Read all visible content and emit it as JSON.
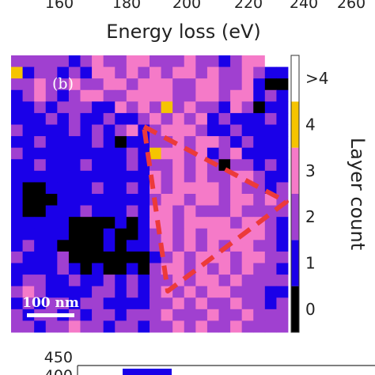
{
  "top_axis": {
    "xlabel": "Energy loss (eV)",
    "ticks": [
      "160",
      "180",
      "200",
      "220",
      "240",
      "260"
    ]
  },
  "panel_label": "(b)",
  "scale_bar_label": "100 nm",
  "bottom_panel": {
    "ticks": [
      "450",
      "400"
    ],
    "bar_color": "#1a00e8"
  },
  "chart_data": {
    "type": "heatmap",
    "ylabel": "Layer count",
    "grid": false,
    "rows": 24,
    "cols": 24,
    "legend_placement": "right colorbar",
    "colorbar": [
      {
        "label": "0",
        "value": 0,
        "color": "#000000"
      },
      {
        "label": "1",
        "value": 1,
        "color": "#1a00e8"
      },
      {
        "label": "2",
        "value": 2,
        "color": "#a040d0"
      },
      {
        "label": "3",
        "value": 3,
        "color": "#f57ac8"
      },
      {
        "label": "4",
        "value": 4,
        "color": "#f5c400"
      },
      {
        "label": ">4",
        "value": 5,
        "color": "#ffffff"
      }
    ],
    "values": [
      [
        2,
        2,
        2,
        2,
        2,
        1,
        2,
        3,
        2,
        2,
        3,
        3,
        2,
        2,
        2,
        3,
        2,
        2,
        1,
        2,
        3,
        3,
        5,
        5
      ],
      [
        4,
        1,
        2,
        2,
        1,
        2,
        1,
        3,
        3,
        2,
        3,
        2,
        3,
        2,
        3,
        3,
        2,
        3,
        2,
        2,
        3,
        2,
        1,
        1
      ],
      [
        2,
        2,
        3,
        2,
        2,
        3,
        2,
        2,
        3,
        3,
        2,
        3,
        3,
        3,
        2,
        2,
        3,
        3,
        2,
        2,
        3,
        1,
        0,
        0
      ],
      [
        1,
        2,
        3,
        2,
        1,
        2,
        3,
        3,
        2,
        2,
        3,
        3,
        3,
        3,
        2,
        2,
        3,
        3,
        2,
        3,
        3,
        1,
        2,
        1
      ],
      [
        1,
        1,
        2,
        1,
        2,
        2,
        2,
        1,
        1,
        3,
        2,
        3,
        2,
        4,
        2,
        3,
        2,
        2,
        1,
        3,
        2,
        0,
        1,
        1
      ],
      [
        1,
        1,
        1,
        2,
        1,
        2,
        1,
        1,
        2,
        1,
        1,
        2,
        3,
        2,
        3,
        2,
        3,
        1,
        2,
        1,
        1,
        1,
        2,
        1
      ],
      [
        2,
        1,
        1,
        1,
        1,
        2,
        1,
        2,
        1,
        2,
        3,
        1,
        2,
        3,
        3,
        3,
        2,
        1,
        1,
        2,
        1,
        1,
        1,
        1
      ],
      [
        1,
        1,
        2,
        1,
        1,
        1,
        1,
        2,
        1,
        0,
        1,
        1,
        2,
        2,
        3,
        2,
        3,
        3,
        2,
        1,
        2,
        1,
        1,
        1
      ],
      [
        2,
        1,
        1,
        1,
        1,
        1,
        1,
        1,
        1,
        1,
        2,
        1,
        4,
        3,
        3,
        2,
        3,
        1,
        2,
        3,
        1,
        1,
        1,
        1
      ],
      [
        1,
        1,
        2,
        1,
        1,
        1,
        2,
        1,
        1,
        1,
        2,
        1,
        2,
        2,
        3,
        2,
        3,
        2,
        0,
        2,
        2,
        1,
        2,
        1
      ],
      [
        1,
        1,
        1,
        1,
        1,
        1,
        1,
        1,
        1,
        1,
        1,
        1,
        3,
        2,
        3,
        2,
        3,
        2,
        2,
        3,
        3,
        2,
        1,
        1
      ],
      [
        1,
        0,
        0,
        1,
        1,
        1,
        1,
        2,
        1,
        1,
        2,
        1,
        3,
        2,
        3,
        3,
        3,
        3,
        2,
        3,
        2,
        2,
        1,
        2
      ],
      [
        1,
        0,
        0,
        0,
        1,
        1,
        1,
        1,
        1,
        1,
        1,
        1,
        2,
        3,
        3,
        2,
        3,
        3,
        2,
        3,
        3,
        2,
        3,
        2
      ],
      [
        1,
        0,
        0,
        1,
        1,
        1,
        2,
        1,
        1,
        1,
        2,
        1,
        3,
        3,
        2,
        3,
        2,
        2,
        2,
        3,
        2,
        2,
        2,
        2
      ],
      [
        1,
        1,
        1,
        1,
        1,
        0,
        0,
        0,
        0,
        1,
        0,
        1,
        3,
        3,
        2,
        3,
        3,
        3,
        3,
        2,
        3,
        3,
        2,
        1
      ],
      [
        1,
        1,
        1,
        1,
        1,
        0,
        0,
        0,
        1,
        0,
        0,
        1,
        2,
        3,
        2,
        3,
        2,
        3,
        3,
        3,
        3,
        3,
        2,
        1
      ],
      [
        1,
        2,
        1,
        1,
        0,
        0,
        0,
        0,
        1,
        0,
        1,
        1,
        2,
        3,
        2,
        3,
        2,
        3,
        2,
        3,
        3,
        2,
        2,
        1
      ],
      [
        2,
        1,
        1,
        1,
        2,
        0,
        0,
        0,
        0,
        0,
        0,
        0,
        1,
        2,
        3,
        2,
        3,
        3,
        3,
        2,
        3,
        3,
        2,
        2
      ],
      [
        1,
        1,
        1,
        1,
        2,
        1,
        0,
        1,
        0,
        0,
        1,
        0,
        2,
        3,
        3,
        2,
        3,
        2,
        3,
        2,
        3,
        2,
        2,
        1
      ],
      [
        1,
        2,
        2,
        1,
        1,
        2,
        1,
        1,
        2,
        1,
        2,
        1,
        2,
        2,
        3,
        2,
        3,
        3,
        2,
        3,
        2,
        2,
        2,
        2
      ],
      [
        2,
        3,
        2,
        1,
        1,
        1,
        1,
        2,
        2,
        1,
        2,
        1,
        2,
        3,
        2,
        3,
        2,
        3,
        3,
        2,
        2,
        2,
        1,
        1
      ],
      [
        1,
        2,
        1,
        2,
        2,
        1,
        2,
        2,
        1,
        1,
        1,
        1,
        2,
        2,
        3,
        2,
        3,
        2,
        2,
        3,
        2,
        2,
        1,
        2
      ],
      [
        2,
        1,
        2,
        2,
        1,
        2,
        1,
        2,
        2,
        1,
        2,
        2,
        2,
        3,
        2,
        2,
        2,
        3,
        2,
        2,
        3,
        2,
        2,
        2
      ],
      [
        2,
        2,
        1,
        2,
        2,
        3,
        2,
        2,
        1,
        2,
        2,
        1,
        2,
        2,
        3,
        2,
        3,
        2,
        2,
        3,
        2,
        2,
        2,
        2
      ]
    ]
  }
}
